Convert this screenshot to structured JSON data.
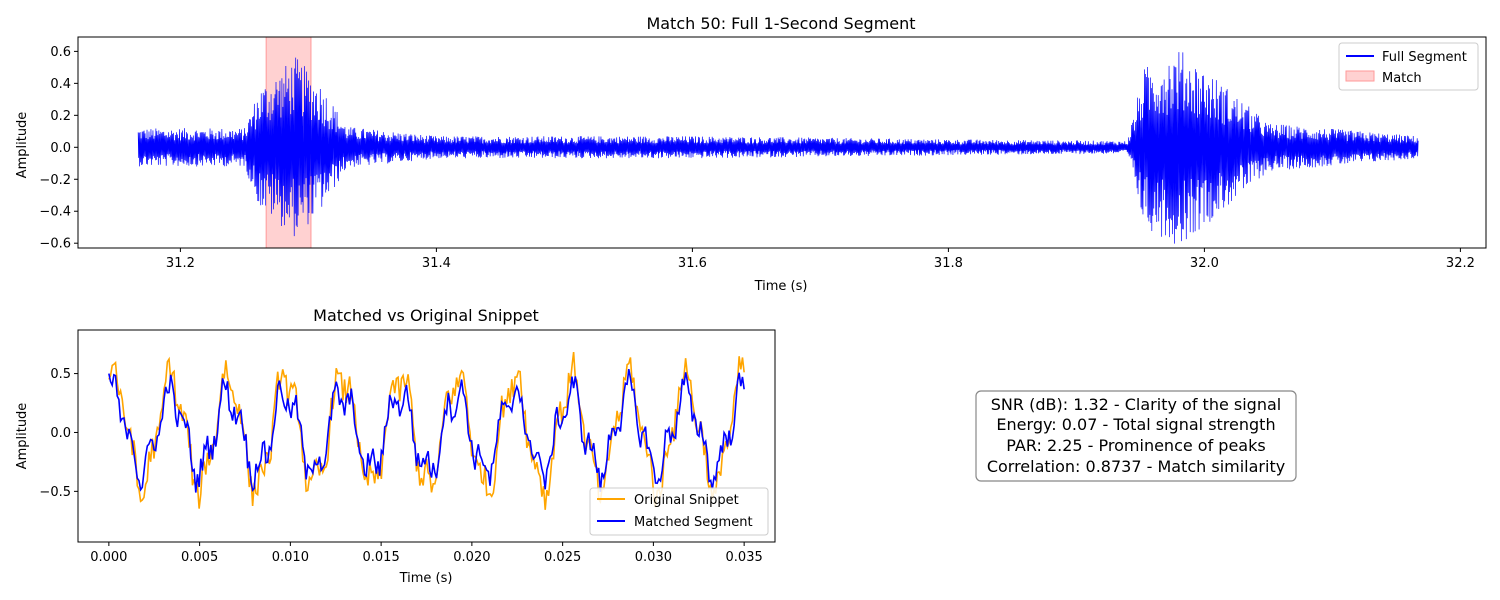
{
  "chart_data": [
    {
      "type": "line",
      "title": "Match 50: Full 1-Second Segment",
      "xlabel": "Time (s)",
      "ylabel": "Amplitude",
      "xlim": [
        31.12,
        32.22
      ],
      "ylim": [
        -0.63,
        0.69
      ],
      "xticks": [
        31.2,
        31.4,
        31.6,
        31.8,
        32.0,
        32.2
      ],
      "xtick_labels": [
        "31.2",
        "31.4",
        "31.6",
        "31.8",
        "32.0",
        "32.2"
      ],
      "yticks": [
        -0.6,
        -0.4,
        -0.2,
        0.0,
        0.2,
        0.4,
        0.6
      ],
      "ytick_labels": [
        "−0.6",
        "−0.4",
        "−0.2",
        "0.0",
        "0.2",
        "0.4",
        "0.6"
      ],
      "series": [
        {
          "name": "Full Segment",
          "color": "#0000ff",
          "x_start": 31.167,
          "x_end": 32.167,
          "envelope": [
            {
              "x": 31.167,
              "amp": 0.12
            },
            {
              "x": 31.25,
              "amp": 0.12
            },
            {
              "x": 31.262,
              "amp": 0.38
            },
            {
              "x": 31.29,
              "amp": 0.57
            },
            {
              "x": 31.31,
              "amp": 0.4
            },
            {
              "x": 31.33,
              "amp": 0.13
            },
            {
              "x": 31.4,
              "amp": 0.07
            },
            {
              "x": 31.6,
              "amp": 0.07
            },
            {
              "x": 31.8,
              "amp": 0.05
            },
            {
              "x": 31.94,
              "amp": 0.04
            },
            {
              "x": 31.953,
              "amp": 0.5
            },
            {
              "x": 31.98,
              "amp": 0.62
            },
            {
              "x": 32.01,
              "amp": 0.43
            },
            {
              "x": 32.05,
              "amp": 0.15
            },
            {
              "x": 32.167,
              "amp": 0.07
            }
          ]
        }
      ],
      "highlight": {
        "name": "Match",
        "x_start": 31.267,
        "x_end": 31.302,
        "color": "#ff9999"
      },
      "legend": {
        "position": "top-right",
        "entries": [
          "Full Segment",
          "Match"
        ]
      }
    },
    {
      "type": "line",
      "title": "Matched vs Original Snippet",
      "xlabel": "Time (s)",
      "ylabel": "Amplitude",
      "xlim": [
        -0.0017,
        0.0367
      ],
      "ylim": [
        -0.93,
        0.87
      ],
      "xticks": [
        0.0,
        0.005,
        0.01,
        0.015,
        0.02,
        0.025,
        0.03,
        0.035
      ],
      "xtick_labels": [
        "0.000",
        "0.005",
        "0.010",
        "0.015",
        "0.020",
        "0.025",
        "0.030",
        "0.035"
      ],
      "yticks": [
        -0.5,
        0.0,
        0.5
      ],
      "ytick_labels": [
        "−0.5",
        "0.0",
        "0.5"
      ],
      "series": [
        {
          "name": "Original Snippet",
          "color": "#ffa500",
          "x_start": 0.0,
          "x_end": 0.035,
          "period": 0.00315,
          "amplitude": 0.55,
          "noise": 0.12
        },
        {
          "name": "Matched Segment",
          "color": "#0000ff",
          "x_start": 0.0,
          "x_end": 0.035,
          "period": 0.00315,
          "amplitude": 0.38,
          "noise": 0.1
        }
      ],
      "legend": {
        "position": "lower-right",
        "entries": [
          "Original Snippet",
          "Matched Segment"
        ]
      }
    }
  ],
  "stats": {
    "lines": [
      "SNR (dB): 1.32 - Clarity of the signal",
      "Energy: 0.07 - Total signal strength",
      "PAR: 2.25 - Prominence of peaks",
      "Correlation: 0.8737 - Match similarity"
    ]
  }
}
